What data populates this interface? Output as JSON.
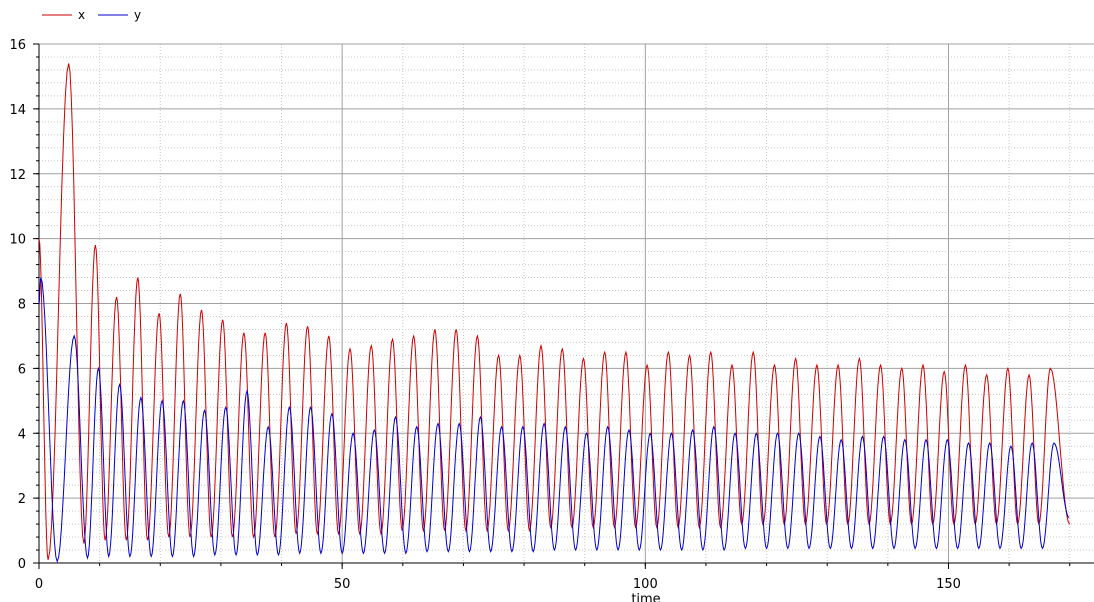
{
  "chart_data": {
    "type": "line",
    "xlabel": "time",
    "ylabel": "",
    "xlim": [
      0,
      174
    ],
    "ylim": [
      0,
      16
    ],
    "x_ticks": [
      0,
      50,
      100,
      150
    ],
    "y_ticks": [
      0,
      2,
      4,
      6,
      8,
      10,
      12,
      14,
      16
    ],
    "grid": true,
    "legend_position": "top-left",
    "series": [
      {
        "name": "x",
        "color": "#cc0000",
        "peaks": [
          [
            4.9,
            15.4
          ],
          [
            9.3,
            9.8
          ],
          [
            12.8,
            8.2
          ],
          [
            16.3,
            8.8
          ],
          [
            19.8,
            7.7
          ],
          [
            23.3,
            8.3
          ],
          [
            26.8,
            7.8
          ],
          [
            30.3,
            7.5
          ],
          [
            33.8,
            7.1
          ],
          [
            37.3,
            7.1
          ],
          [
            40.8,
            7.4
          ],
          [
            44.3,
            7.3
          ],
          [
            47.8,
            7.0
          ],
          [
            51.3,
            6.6
          ],
          [
            54.8,
            6.7
          ],
          [
            58.3,
            6.9
          ],
          [
            61.8,
            7.0
          ],
          [
            65.3,
            7.2
          ],
          [
            68.8,
            7.2
          ],
          [
            72.3,
            7.0
          ],
          [
            75.8,
            6.4
          ],
          [
            79.3,
            6.4
          ],
          [
            82.8,
            6.7
          ],
          [
            86.3,
            6.6
          ],
          [
            89.8,
            6.3
          ],
          [
            93.3,
            6.5
          ],
          [
            96.8,
            6.5
          ],
          [
            100.3,
            6.1
          ],
          [
            103.8,
            6.5
          ],
          [
            107.3,
            6.4
          ],
          [
            110.8,
            6.5
          ],
          [
            114.3,
            6.1
          ],
          [
            117.8,
            6.5
          ],
          [
            121.3,
            6.1
          ],
          [
            124.8,
            6.3
          ],
          [
            128.3,
            6.1
          ],
          [
            131.8,
            6.1
          ],
          [
            135.3,
            6.3
          ],
          [
            138.8,
            6.1
          ],
          [
            142.3,
            6.0
          ],
          [
            145.8,
            6.1
          ],
          [
            149.3,
            5.9
          ],
          [
            152.8,
            6.1
          ],
          [
            156.3,
            5.8
          ],
          [
            159.8,
            6.0
          ],
          [
            163.3,
            5.8
          ],
          [
            166.8,
            6.0
          ]
        ],
        "troughs": [
          [
            1.5,
            0.1
          ],
          [
            7.4,
            0.6
          ],
          [
            10.9,
            0.7
          ],
          [
            14.4,
            0.7
          ],
          [
            17.9,
            0.7
          ],
          [
            21.4,
            0.8
          ],
          [
            24.9,
            0.8
          ],
          [
            28.4,
            0.8
          ],
          [
            31.9,
            0.8
          ],
          [
            35.4,
            0.8
          ],
          [
            38.9,
            0.8
          ],
          [
            42.4,
            0.9
          ],
          [
            45.9,
            0.9
          ],
          [
            49.4,
            0.9
          ],
          [
            52.9,
            0.9
          ],
          [
            56.4,
            0.9
          ],
          [
            59.9,
            1.0
          ],
          [
            63.4,
            1.0
          ],
          [
            66.9,
            1.0
          ],
          [
            70.4,
            1.0
          ],
          [
            73.9,
            1.0
          ],
          [
            77.4,
            1.0
          ],
          [
            80.9,
            1.0
          ],
          [
            84.4,
            1.1
          ],
          [
            87.9,
            1.1
          ],
          [
            91.4,
            1.1
          ],
          [
            94.9,
            1.1
          ],
          [
            98.4,
            1.1
          ],
          [
            101.9,
            1.1
          ],
          [
            105.4,
            1.1
          ],
          [
            108.9,
            1.1
          ],
          [
            112.4,
            1.1
          ],
          [
            115.9,
            1.2
          ],
          [
            119.4,
            1.2
          ],
          [
            122.9,
            1.2
          ],
          [
            126.4,
            1.2
          ],
          [
            129.9,
            1.2
          ],
          [
            133.4,
            1.2
          ],
          [
            136.9,
            1.2
          ],
          [
            140.4,
            1.2
          ],
          [
            143.9,
            1.2
          ],
          [
            147.4,
            1.2
          ],
          [
            150.9,
            1.2
          ],
          [
            154.4,
            1.2
          ],
          [
            157.9,
            1.2
          ],
          [
            161.4,
            1.2
          ],
          [
            164.9,
            1.2
          ],
          [
            170.0,
            1.2
          ]
        ]
      },
      {
        "name": "y",
        "color": "#0000cc",
        "peaks": [
          [
            0.3,
            8.8
          ],
          [
            5.8,
            7.0
          ],
          [
            9.8,
            6.0
          ],
          [
            13.3,
            5.5
          ],
          [
            16.8,
            5.1
          ],
          [
            20.3,
            5.0
          ],
          [
            23.8,
            5.0
          ],
          [
            27.3,
            4.7
          ],
          [
            30.8,
            4.8
          ],
          [
            34.3,
            5.3
          ],
          [
            37.8,
            4.2
          ],
          [
            41.3,
            4.8
          ],
          [
            44.8,
            4.8
          ],
          [
            48.3,
            4.6
          ],
          [
            51.8,
            4.0
          ],
          [
            55.3,
            4.1
          ],
          [
            58.8,
            4.5
          ],
          [
            62.3,
            4.2
          ],
          [
            65.8,
            4.3
          ],
          [
            69.3,
            4.3
          ],
          [
            72.8,
            4.5
          ],
          [
            76.3,
            4.2
          ],
          [
            79.8,
            4.2
          ],
          [
            83.3,
            4.3
          ],
          [
            86.8,
            4.2
          ],
          [
            90.3,
            4.0
          ],
          [
            93.8,
            4.2
          ],
          [
            97.3,
            4.1
          ],
          [
            100.8,
            4.0
          ],
          [
            104.3,
            4.0
          ],
          [
            107.8,
            4.1
          ],
          [
            111.3,
            4.2
          ],
          [
            114.8,
            4.0
          ],
          [
            118.3,
            4.0
          ],
          [
            121.8,
            4.0
          ],
          [
            125.3,
            4.0
          ],
          [
            128.8,
            3.9
          ],
          [
            132.3,
            3.8
          ],
          [
            135.8,
            3.9
          ],
          [
            139.3,
            3.9
          ],
          [
            142.8,
            3.8
          ],
          [
            146.3,
            3.8
          ],
          [
            149.8,
            3.8
          ],
          [
            153.3,
            3.7
          ],
          [
            156.8,
            3.7
          ],
          [
            160.3,
            3.6
          ],
          [
            163.8,
            3.7
          ],
          [
            167.4,
            3.7
          ]
        ],
        "troughs": [
          [
            3.0,
            0.05
          ],
          [
            8.0,
            0.15
          ],
          [
            11.5,
            0.2
          ],
          [
            15.0,
            0.2
          ],
          [
            18.5,
            0.2
          ],
          [
            22.0,
            0.2
          ],
          [
            25.5,
            0.2
          ],
          [
            29.0,
            0.25
          ],
          [
            32.5,
            0.25
          ],
          [
            36.0,
            0.25
          ],
          [
            39.5,
            0.25
          ],
          [
            43.0,
            0.3
          ],
          [
            46.5,
            0.3
          ],
          [
            50.0,
            0.3
          ],
          [
            53.5,
            0.3
          ],
          [
            57.0,
            0.3
          ],
          [
            60.5,
            0.3
          ],
          [
            64.0,
            0.35
          ],
          [
            67.5,
            0.35
          ],
          [
            71.0,
            0.35
          ],
          [
            74.5,
            0.35
          ],
          [
            78.0,
            0.35
          ],
          [
            81.5,
            0.35
          ],
          [
            85.0,
            0.4
          ],
          [
            88.5,
            0.4
          ],
          [
            92.0,
            0.4
          ],
          [
            95.5,
            0.4
          ],
          [
            99.0,
            0.4
          ],
          [
            102.5,
            0.4
          ],
          [
            106.0,
            0.4
          ],
          [
            109.5,
            0.4
          ],
          [
            113.0,
            0.4
          ],
          [
            116.5,
            0.45
          ],
          [
            120.0,
            0.45
          ],
          [
            123.5,
            0.45
          ],
          [
            127.0,
            0.45
          ],
          [
            130.5,
            0.45
          ],
          [
            134.0,
            0.45
          ],
          [
            137.5,
            0.45
          ],
          [
            141.0,
            0.45
          ],
          [
            144.5,
            0.45
          ],
          [
            148.0,
            0.45
          ],
          [
            151.5,
            0.45
          ],
          [
            155.0,
            0.45
          ],
          [
            158.5,
            0.45
          ],
          [
            162.0,
            0.45
          ],
          [
            165.5,
            0.45
          ],
          [
            169.9,
            1.4
          ]
        ]
      }
    ]
  }
}
